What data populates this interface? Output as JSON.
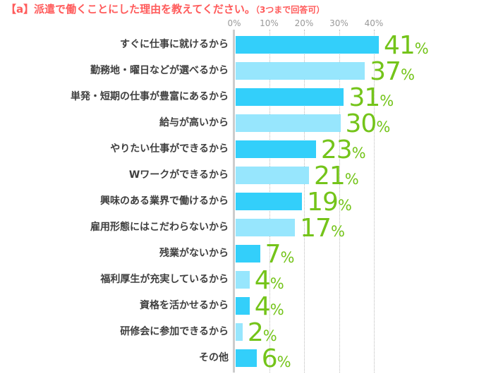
{
  "title": {
    "text": "【a】派遣で働くことにした理由を教えてください。",
    "note": "（3つまで回答可）",
    "color": "#ff5b5b"
  },
  "chart_data": {
    "type": "bar",
    "orientation": "horizontal",
    "title": "派遣で働くことにした理由（3つまで回答可）",
    "categories": [
      "すぐに仕事に就けるから",
      "勤務地・曜日などが選べるから",
      "単発・短期の仕事が豊富にあるから",
      "給与が高いから",
      "やりたい仕事ができるから",
      "Wワークができるから",
      "興味のある業界で働けるから",
      "雇用形態にはこだわらないから",
      "残業がないから",
      "福利厚生が充実しているから",
      "資格を活かせるから",
      "研修会に参加できるから",
      "その他"
    ],
    "values": [
      41,
      37,
      31,
      30,
      23,
      21,
      19,
      17,
      7,
      4,
      4,
      2,
      6
    ],
    "unit": "%",
    "x_ticks": [
      "0%",
      "10%",
      "20%",
      "30%",
      "40%"
    ],
    "x_tick_values": [
      0,
      10,
      20,
      30,
      40
    ],
    "xlim": [
      0,
      45
    ],
    "grid": "vertical-dotted",
    "legend": "none",
    "colors": {
      "bar_dark": "#33cffa",
      "bar_light": "#97e6fd",
      "value_label": "#74c41a",
      "category_label": "#3f3f3f",
      "axis_text": "#999999",
      "axis_line": "#cccccc"
    }
  }
}
